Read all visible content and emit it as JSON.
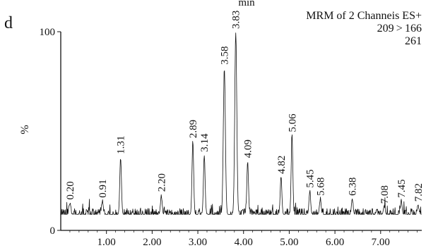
{
  "panel_label": "d",
  "header": {
    "unit": "min",
    "line1": "MRM of 2 Channeis ES+",
    "line2": "209 > 166",
    "line3": "261"
  },
  "colors": {
    "trace": "#111111",
    "axis": "#111111",
    "background": "#ffffff"
  },
  "chart_data": {
    "type": "line",
    "title": "MRM of 2 Channeis ES+",
    "xlabel": "",
    "ylabel": "%",
    "xlim": [
      0.0,
      7.9
    ],
    "ylim": [
      0,
      100
    ],
    "xticks": [
      1.0,
      2.0,
      3.0,
      4.0,
      5.0,
      6.0,
      7.0
    ],
    "xtick_labels": [
      "1.00",
      "2.00",
      "3.00",
      "4.00",
      "5.00",
      "6.00",
      "7.00"
    ],
    "yticks": [
      0,
      100
    ],
    "ytick_labels": [
      "0",
      "100"
    ],
    "grid": false,
    "baseline_level": 8,
    "peaks": [
      {
        "label": "0.20",
        "x": 0.2,
        "y": 14
      },
      {
        "label": "0.91",
        "x": 0.91,
        "y": 15
      },
      {
        "label": "1.31",
        "x": 1.31,
        "y": 37
      },
      {
        "label": "2.20",
        "x": 2.2,
        "y": 18
      },
      {
        "label": "2.89",
        "x": 2.89,
        "y": 45
      },
      {
        "label": "3.14",
        "x": 3.14,
        "y": 38
      },
      {
        "label": "3.58",
        "x": 3.58,
        "y": 82
      },
      {
        "label": "3.83",
        "x": 3.83,
        "y": 100
      },
      {
        "label": "4.09",
        "x": 4.09,
        "y": 35
      },
      {
        "label": "4.82",
        "x": 4.82,
        "y": 27
      },
      {
        "label": "5.06",
        "x": 5.06,
        "y": 48
      },
      {
        "label": "5.45",
        "x": 5.45,
        "y": 20
      },
      {
        "label": "5.68",
        "x": 5.68,
        "y": 16
      },
      {
        "label": "6.38",
        "x": 6.38,
        "y": 16
      },
      {
        "label": "7.08",
        "x": 7.08,
        "y": 12
      },
      {
        "label": "7.45",
        "x": 7.45,
        "y": 15
      },
      {
        "label": "7.82",
        "x": 7.82,
        "y": 13
      }
    ]
  }
}
